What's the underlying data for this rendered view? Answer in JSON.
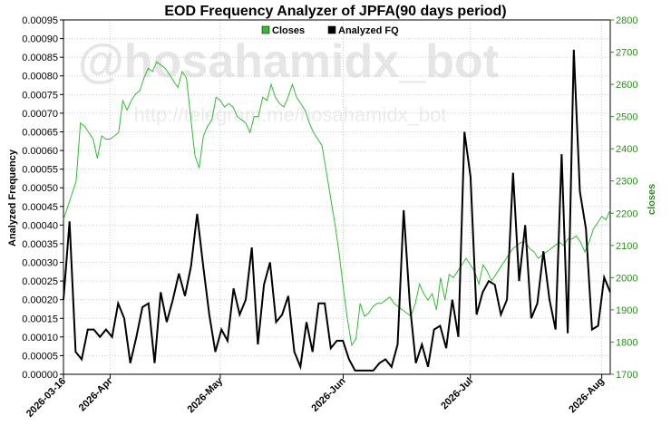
{
  "chart_data": {
    "type": "line",
    "title": "EOD Frequency Analyzer of JPFA(90 days period)",
    "ylabel": "Analyzed Frequency",
    "y2label": "closes",
    "ylim": [
      0,
      0.00095
    ],
    "y2lim": [
      1700,
      2800
    ],
    "yticks": [
      "0.00000",
      "0.00005",
      "0.00010",
      "0.00015",
      "0.00020",
      "0.00025",
      "0.00030",
      "0.00035",
      "0.00040",
      "0.00045",
      "0.00050",
      "0.00055",
      "0.00060",
      "0.00065",
      "0.00070",
      "0.00075",
      "0.00080",
      "0.00085",
      "0.00090",
      "0.00095"
    ],
    "y2ticks": [
      "1700",
      "1800",
      "1900",
      "2000",
      "2100",
      "2200",
      "2300",
      "2400",
      "2500",
      "2600",
      "2700",
      "2800"
    ],
    "xticks": [
      {
        "label": "2026-03-16",
        "index": 0
      },
      {
        "label": "2026-Apr",
        "index": 11
      },
      {
        "label": "2026-May",
        "index": 37
      },
      {
        "label": "2026-Jun",
        "index": 66
      },
      {
        "label": "2026-Jul",
        "index": 96
      },
      {
        "label": "2026-Aug",
        "index": 127
      }
    ],
    "grid": true,
    "legend_position": "top-center",
    "watermark": "@hosahamidx_bot",
    "watermark_sub": "http://telegram.me/hosahamidx_bot",
    "colors": {
      "closes": "#33bb33",
      "analyzed_fq": "#000000"
    },
    "series": [
      {
        "name": "Closes",
        "axis": "right",
        "values": [
          2180,
          2220,
          2260,
          2300,
          2480,
          2470,
          2450,
          2430,
          2370,
          2440,
          2430,
          2430,
          2440,
          2450,
          2550,
          2520,
          2550,
          2570,
          2580,
          2620,
          2650,
          2640,
          2670,
          2660,
          2650,
          2630,
          2610,
          2590,
          2640,
          2620,
          2500,
          2380,
          2340,
          2440,
          2470,
          2490,
          2560,
          2550,
          2530,
          2540,
          2530,
          2500,
          2490,
          2480,
          2450,
          2500,
          2500,
          2560,
          2550,
          2600,
          2560,
          2540,
          2530,
          2560,
          2600,
          2560,
          2540,
          2520,
          2480,
          2450,
          2430,
          2410,
          2330,
          2250,
          2170,
          2080,
          1970,
          1870,
          1790,
          1810,
          1920,
          1880,
          1890,
          1910,
          1920,
          1920,
          1930,
          1940,
          1920,
          1910,
          1900,
          1890,
          1880,
          1920,
          1980,
          1950,
          1930,
          1950,
          1900,
          2000,
          1930,
          2010,
          2000,
          2020,
          2040,
          2060,
          2040,
          2020,
          1980,
          2040,
          2020,
          1990,
          2010,
          2030,
          2050,
          2070,
          2090,
          2100,
          2110,
          2110,
          2090,
          2080,
          2060,
          2070,
          2080,
          2090,
          2100,
          2110,
          2100,
          2120,
          2120,
          2130,
          2110,
          2080,
          2110,
          2150,
          2170,
          2190,
          2180,
          2210
        ]
      },
      {
        "name": "Analyzed FQ",
        "axis": "left",
        "values": [
          0.0002,
          0.00041,
          6e-05,
          4e-05,
          0.00012,
          0.00012,
          0.0001,
          0.00012,
          0.0001,
          0.00019,
          0.00015,
          3e-05,
          0.0001,
          0.00018,
          0.00019,
          3e-05,
          0.00022,
          0.00014,
          0.0002,
          0.00027,
          0.00021,
          0.00029,
          0.00043,
          0.00029,
          0.00016,
          6e-05,
          0.00012,
          9e-05,
          0.00023,
          0.00016,
          0.0002,
          0.00034,
          8e-05,
          0.00024,
          0.0003,
          0.00014,
          0.00016,
          0.00021,
          6e-05,
          2e-05,
          0.00014,
          6e-05,
          0.00019,
          0.00019,
          7e-05,
          9e-05,
          9e-05,
          4e-05,
          1e-05,
          1e-05,
          1e-05,
          1e-05,
          3e-05,
          4e-05,
          2e-05,
          8e-05,
          0.00044,
          0.00019,
          3e-05,
          8e-05,
          2e-05,
          0.00012,
          0.00013,
          7e-05,
          0.0002,
          0.0001,
          0.00065,
          0.00053,
          0.00016,
          0.00022,
          0.00025,
          0.00024,
          0.00016,
          0.0002,
          0.00054,
          0.00025,
          0.0004,
          0.00015,
          0.00019,
          0.00033,
          0.0002,
          0.00012,
          0.00059,
          0.00011,
          0.00087,
          0.00049,
          0.00039,
          0.00012,
          0.00013,
          0.00026,
          0.00022
        ]
      }
    ]
  }
}
